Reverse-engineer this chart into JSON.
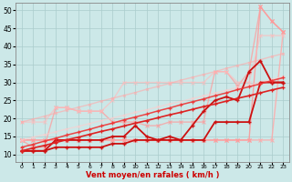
{
  "xlabel": "Vent moyen/en rafales ( km/h )",
  "xlim": [
    -0.5,
    23.5
  ],
  "ylim": [
    8,
    52
  ],
  "yticks": [
    10,
    15,
    20,
    25,
    30,
    35,
    40,
    45,
    50
  ],
  "xticks": [
    0,
    1,
    2,
    3,
    4,
    5,
    6,
    7,
    8,
    9,
    10,
    11,
    12,
    13,
    14,
    15,
    16,
    17,
    18,
    19,
    20,
    21,
    22,
    23
  ],
  "bg_color": "#cce8e8",
  "grid_color": "#aacccc",
  "lines": [
    {
      "color": "#ffaaaa",
      "alpha": 0.85,
      "lw": 1.0,
      "marker": "x",
      "ms": 2.5,
      "mew": 0.8,
      "data_x": [
        0,
        1,
        2,
        3,
        4,
        5,
        6,
        7,
        8,
        9,
        10,
        11,
        12,
        13,
        14,
        15,
        16,
        17,
        18,
        19,
        20,
        21,
        22,
        23
      ],
      "data_y": [
        14,
        14,
        14,
        14,
        14,
        14,
        14,
        14,
        14,
        14,
        14,
        14,
        14,
        14,
        14,
        14,
        14,
        14,
        14,
        14,
        14,
        14,
        14,
        44
      ]
    },
    {
      "color": "#ff9999",
      "alpha": 0.85,
      "lw": 1.0,
      "marker": "x",
      "ms": 2.5,
      "mew": 0.8,
      "data_x": [
        0,
        1,
        2,
        3,
        4,
        5,
        6,
        7,
        8,
        9,
        10,
        11,
        12,
        13,
        14,
        15,
        16,
        17,
        18,
        19,
        20,
        21,
        22,
        23
      ],
      "data_y": [
        14,
        14,
        14,
        14,
        14,
        14,
        14,
        14,
        14,
        14,
        14,
        14,
        14,
        14,
        14,
        14,
        14,
        14,
        14,
        14,
        14,
        51,
        47,
        44
      ]
    },
    {
      "color": "#ff9999",
      "alpha": 0.7,
      "lw": 1.0,
      "marker": "x",
      "ms": 2.5,
      "mew": 0.8,
      "data_x": [
        0,
        1,
        2,
        3,
        4,
        5,
        6,
        7,
        8,
        9,
        10,
        11,
        12,
        13,
        14,
        15,
        16,
        17,
        18,
        19,
        20,
        21,
        22,
        23
      ],
      "data_y": [
        14,
        12,
        12,
        23,
        23,
        22,
        22,
        22,
        19,
        19,
        19,
        18,
        18,
        19,
        19,
        19,
        19,
        33,
        33,
        29,
        33,
        51,
        47,
        44
      ]
    },
    {
      "color": "#ffbbbb",
      "alpha": 0.65,
      "lw": 1.0,
      "marker": "x",
      "ms": 2.5,
      "mew": 0.8,
      "data_x": [
        0,
        1,
        2,
        3,
        4,
        5,
        6,
        7,
        8,
        9,
        10,
        11,
        12,
        13,
        14,
        15,
        16,
        17,
        18,
        19,
        20,
        21,
        22,
        23
      ],
      "data_y": [
        19,
        19,
        19,
        23,
        23,
        22,
        22,
        22,
        25,
        30,
        30,
        30,
        30,
        30,
        30,
        30,
        30,
        33,
        33,
        30,
        30,
        43,
        43,
        43
      ]
    },
    {
      "color": "#ffcccc",
      "alpha": 0.6,
      "lw": 1.0,
      "marker": "x",
      "ms": 2.0,
      "mew": 0.8,
      "data_x": [
        0,
        1,
        2,
        3,
        4,
        5,
        6,
        7,
        8,
        9,
        10,
        11,
        12,
        13,
        14,
        15,
        16,
        17,
        18,
        19,
        20,
        21,
        22,
        23
      ],
      "data_y": [
        14,
        14.8,
        15.5,
        16.3,
        17.1,
        17.8,
        18.6,
        19.4,
        20.1,
        20.9,
        21.7,
        22.4,
        23.2,
        24.0,
        24.7,
        25.5,
        26.3,
        27.0,
        27.8,
        28.6,
        29.3,
        30.1,
        30.9,
        31.6
      ]
    },
    {
      "color": "#ffaaaa",
      "alpha": 0.6,
      "lw": 1.0,
      "marker": "x",
      "ms": 2.0,
      "mew": 0.8,
      "data_x": [
        0,
        1,
        2,
        3,
        4,
        5,
        6,
        7,
        8,
        9,
        10,
        11,
        12,
        13,
        14,
        15,
        16,
        17,
        18,
        19,
        20,
        21,
        22,
        23
      ],
      "data_y": [
        19,
        19.8,
        20.6,
        21.5,
        22.3,
        23.1,
        23.9,
        24.8,
        25.6,
        26.4,
        27.2,
        28.1,
        28.9,
        29.7,
        30.6,
        31.4,
        32.2,
        33.0,
        33.9,
        34.7,
        35.5,
        36.3,
        37.2,
        38.0
      ]
    },
    {
      "color": "#cc1111",
      "alpha": 1.0,
      "lw": 1.3,
      "marker": "+",
      "ms": 3,
      "mew": 1.0,
      "data_x": [
        0,
        1,
        2,
        3,
        4,
        5,
        6,
        7,
        8,
        9,
        10,
        11,
        12,
        13,
        14,
        15,
        16,
        17,
        18,
        19,
        20,
        21,
        22,
        23
      ],
      "data_y": [
        11,
        11,
        11,
        12,
        12,
        12,
        12,
        12,
        13,
        13,
        14,
        14,
        14,
        14,
        14,
        14,
        14,
        19,
        19,
        19,
        19,
        30,
        30,
        30
      ]
    },
    {
      "color": "#cc1111",
      "alpha": 1.0,
      "lw": 1.3,
      "marker": "+",
      "ms": 3,
      "mew": 1.0,
      "data_x": [
        0,
        1,
        2,
        3,
        4,
        5,
        6,
        7,
        8,
        9,
        10,
        11,
        12,
        13,
        14,
        15,
        16,
        17,
        18,
        19,
        20,
        21,
        22,
        23
      ],
      "data_y": [
        11,
        11,
        11,
        14,
        14,
        14,
        14,
        14,
        15,
        15,
        18,
        15,
        14,
        15,
        14,
        18,
        22,
        25,
        26,
        25,
        33,
        36,
        30,
        30
      ]
    },
    {
      "color": "#dd2222",
      "alpha": 1.0,
      "lw": 1.2,
      "marker": "+",
      "ms": 2.5,
      "mew": 0.9,
      "data_x": [
        0,
        1,
        2,
        3,
        4,
        5,
        6,
        7,
        8,
        9,
        10,
        11,
        12,
        13,
        14,
        15,
        16,
        17,
        18,
        19,
        20,
        21,
        22,
        23
      ],
      "data_y": [
        11,
        11.8,
        12.5,
        13.3,
        14.1,
        14.8,
        15.6,
        16.4,
        17.1,
        17.9,
        18.7,
        19.4,
        20.2,
        21.0,
        21.7,
        22.5,
        23.3,
        24.0,
        24.8,
        25.6,
        26.3,
        27.1,
        27.9,
        28.6
      ]
    },
    {
      "color": "#ee3333",
      "alpha": 0.9,
      "lw": 1.1,
      "marker": "+",
      "ms": 2.5,
      "mew": 0.9,
      "data_x": [
        0,
        1,
        2,
        3,
        4,
        5,
        6,
        7,
        8,
        9,
        10,
        11,
        12,
        13,
        14,
        15,
        16,
        17,
        18,
        19,
        20,
        21,
        22,
        23
      ],
      "data_y": [
        12,
        12.8,
        13.7,
        14.5,
        15.4,
        16.2,
        17.0,
        17.9,
        18.7,
        19.6,
        20.4,
        21.2,
        22.1,
        22.9,
        23.8,
        24.6,
        25.4,
        26.3,
        27.1,
        28.0,
        28.8,
        29.6,
        30.5,
        31.3
      ]
    }
  ]
}
